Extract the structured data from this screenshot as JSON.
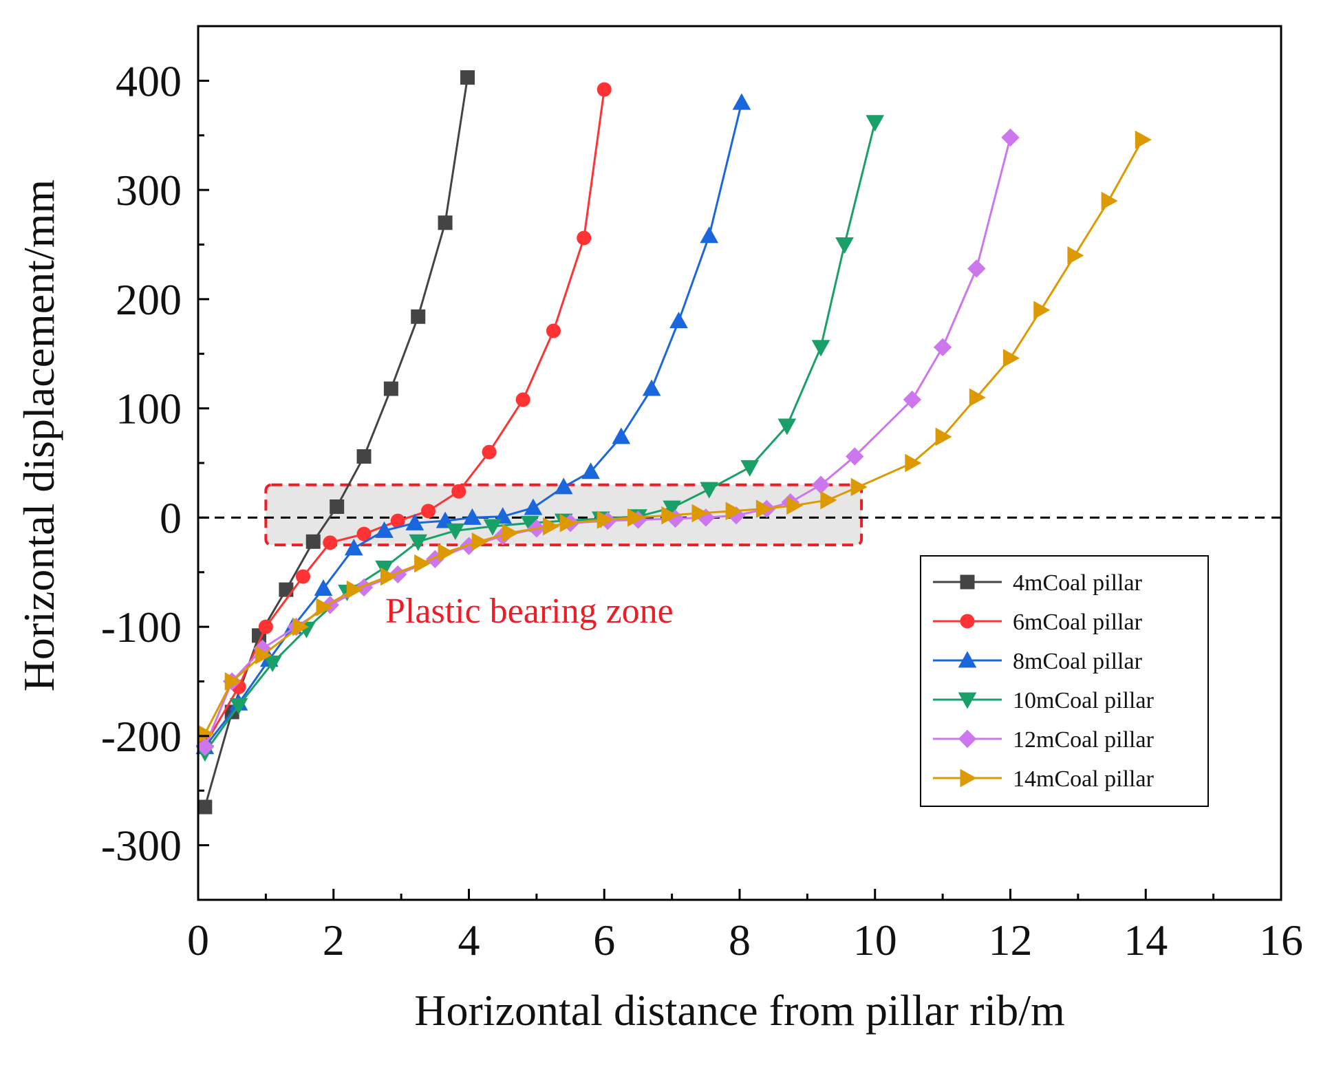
{
  "chart_data": {
    "type": "line",
    "title": "",
    "xlabel": "Horizontal distance from pillar rib/m",
    "ylabel": "Horizontal displacement/mm",
    "xlim": [
      0,
      16
    ],
    "ylim": [
      -350,
      450
    ],
    "x_ticks": [
      0,
      2,
      4,
      6,
      8,
      10,
      12,
      14,
      16
    ],
    "x_tick_labels": [
      "0",
      "2",
      "4",
      "6",
      "8",
      "10",
      "12",
      "14",
      "16"
    ],
    "y_ticks": [
      400,
      300,
      200,
      100,
      0,
      -100,
      -200,
      -300
    ],
    "y_tick_labels": [
      "400",
      "300",
      "200",
      "100",
      "0",
      "-100",
      "-200",
      "-300"
    ],
    "reference_line": {
      "y": 0,
      "style": "dashed",
      "color": "#000000"
    },
    "annotation": {
      "text": "Plastic bearing zone",
      "color": "#ee1c25",
      "box": {
        "x0": 1.0,
        "x1": 9.8,
        "y0": -25,
        "y1": 30
      }
    },
    "legend": {
      "position": "bottom-right"
    },
    "series": [
      {
        "name": "4mCoal pillar",
        "color": "#444444",
        "marker": "square",
        "x": [
          0.1,
          0.5,
          0.9,
          1.3,
          1.7,
          2.05,
          2.45,
          2.85,
          3.25,
          3.65,
          3.98
        ],
        "y": [
          -265,
          -178,
          -108,
          -66,
          -22,
          10,
          56,
          118,
          184,
          270,
          403
        ]
      },
      {
        "name": "6mCoal pillar",
        "color": "#ff3333",
        "marker": "circle",
        "x": [
          0.1,
          0.6,
          1.0,
          1.55,
          1.95,
          2.45,
          2.95,
          3.4,
          3.85,
          4.3,
          4.8,
          5.25,
          5.7,
          6.0
        ],
        "y": [
          -208,
          -155,
          -100,
          -54,
          -23,
          -15,
          -3,
          6,
          24,
          60,
          108,
          171,
          256,
          392
        ]
      },
      {
        "name": "8mCoal pillar",
        "color": "#1a66dd",
        "marker": "triangle-up",
        "x": [
          0.1,
          0.6,
          1.05,
          1.4,
          1.85,
          2.3,
          2.75,
          3.2,
          3.65,
          4.05,
          4.5,
          4.95,
          5.4,
          5.8,
          6.25,
          6.7,
          7.1,
          7.55,
          8.03
        ],
        "y": [
          -210,
          -170,
          -130,
          -100,
          -65,
          -28,
          -12,
          -5,
          -3,
          0,
          1,
          9,
          28,
          42,
          74,
          118,
          180,
          258,
          380
        ]
      },
      {
        "name": "10mCoal pillar",
        "color": "#18a068",
        "marker": "triangle-down",
        "x": [
          0.1,
          0.6,
          1.1,
          1.6,
          2.2,
          2.75,
          3.25,
          3.8,
          4.35,
          4.9,
          5.4,
          5.95,
          6.5,
          7.0,
          7.55,
          8.15,
          8.7,
          9.2,
          9.55,
          10.0
        ],
        "y": [
          -215,
          -172,
          -133,
          -102,
          -68,
          -46,
          -22,
          -12,
          -8,
          -5,
          -3,
          -1,
          1,
          9,
          26,
          46,
          84,
          156,
          250,
          362
        ]
      },
      {
        "name": "12mCoal pillar",
        "color": "#cc77ee",
        "marker": "diamond",
        "x": [
          0.1,
          0.5,
          0.95,
          1.45,
          1.95,
          2.45,
          2.95,
          3.5,
          4.0,
          4.5,
          5.0,
          5.5,
          6.05,
          6.5,
          7.05,
          7.5,
          7.95,
          8.4,
          8.75,
          9.2,
          9.7,
          10.55,
          11.0,
          11.5,
          12.0
        ],
        "y": [
          -210,
          -150,
          -120,
          -100,
          -80,
          -64,
          -52,
          -38,
          -26,
          -17,
          -10,
          -5,
          -3,
          -2,
          -1,
          0,
          2,
          8,
          14,
          30,
          56,
          108,
          156,
          228,
          348
        ]
      },
      {
        "name": "14mCoal pillar",
        "color": "#dd9900",
        "marker": "triangle-right",
        "x": [
          0.1,
          0.5,
          0.95,
          1.5,
          1.85,
          2.3,
          2.8,
          3.3,
          3.65,
          4.15,
          4.6,
          5.2,
          5.45,
          6.0,
          6.45,
          6.95,
          7.4,
          7.9,
          8.35,
          8.8,
          9.3,
          9.75,
          10.55,
          11.0,
          11.5,
          12.0,
          12.45,
          12.95,
          13.45,
          13.95
        ],
        "y": [
          -198,
          -150,
          -126,
          -100,
          -82,
          -66,
          -54,
          -42,
          -32,
          -22,
          -14,
          -8,
          -5,
          -2,
          0,
          2,
          4,
          6,
          8,
          11,
          16,
          28,
          50,
          74,
          110,
          146,
          190,
          240,
          290,
          346
        ]
      }
    ]
  }
}
